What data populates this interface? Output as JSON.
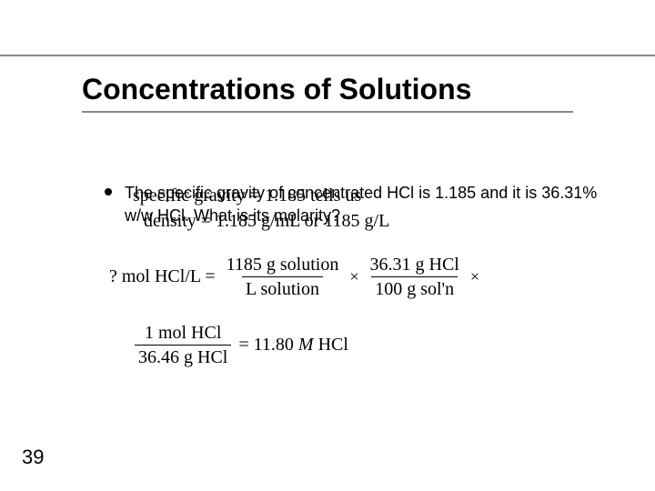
{
  "slide": {
    "title": "Concentrations of Solutions",
    "bullet": "The specific gravity of concentrated HCl is 1.185 and it is 36.31% w/w HCl.  What is its molarity?",
    "overlay1": "specific gravity = 1.185  tells us",
    "overlay2": "density = 1.185 g/mL or 1185 g/L",
    "eq": {
      "lhs": "? mol HCl/L =",
      "f1_num": "1185 g solution",
      "f1_den": "L solution",
      "f2_num": "36.31 g HCl",
      "f2_den": "100 g sol'n",
      "f3_num": "1 mol HCl",
      "f3_den": "36.46 g HCl",
      "result_eq": "= 11.80 ",
      "result_unit": "M",
      "result_tail": " HCl"
    },
    "page": "39"
  },
  "style": {
    "title_fontsize": 32,
    "body_fontsize": 18,
    "eq_fontsize": 20,
    "bg": "#ffffff",
    "line_color": "#888888",
    "text_color": "#000000"
  }
}
